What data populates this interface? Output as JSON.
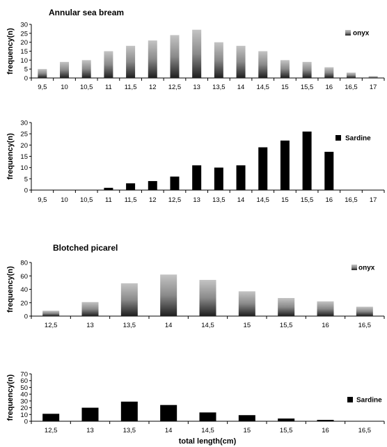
{
  "chart_data": [
    {
      "type": "bar",
      "title": "Annular sea bream",
      "ylabel": "frequency(n)",
      "xlabel": "",
      "ylim": [
        0,
        30
      ],
      "yticks": [
        0,
        5,
        10,
        15,
        20,
        25,
        30
      ],
      "categories": [
        "9,5",
        "10",
        "10,5",
        "11",
        "11,5",
        "12",
        "12,5",
        "13",
        "13,5",
        "14",
        "14,5",
        "15",
        "15,5",
        "16",
        "16,5",
        "17"
      ],
      "series": [
        {
          "name": "onyx",
          "values": [
            5,
            9,
            10,
            15,
            18,
            21,
            24,
            27,
            20,
            18,
            15,
            10,
            9,
            6,
            3,
            1
          ]
        }
      ],
      "style": "gradient",
      "legend": "right"
    },
    {
      "type": "bar",
      "title": "",
      "ylabel": "frequency(n)",
      "xlabel": "",
      "ylim": [
        0,
        30
      ],
      "yticks": [
        0,
        5,
        10,
        15,
        20,
        25,
        30
      ],
      "categories": [
        "9,5",
        "10",
        "10,5",
        "11",
        "11,5",
        "12",
        "12,5",
        "13",
        "13,5",
        "14",
        "14,5",
        "15",
        "15,5",
        "16",
        "16,5",
        "17"
      ],
      "series": [
        {
          "name": "Sardine",
          "values": [
            0,
            0,
            0,
            1,
            3,
            4,
            6,
            11,
            10,
            11,
            19,
            22,
            26,
            17,
            0,
            0
          ]
        }
      ],
      "style": "solid",
      "legend": "right"
    },
    {
      "type": "bar",
      "title": "Blotched picarel",
      "ylabel": "frequency(n)",
      "xlabel": "",
      "ylim": [
        0,
        80
      ],
      "yticks": [
        0,
        20,
        40,
        60,
        80
      ],
      "categories": [
        "12,5",
        "13",
        "13,5",
        "14",
        "14,5",
        "15",
        "15,5",
        "16",
        "16,5"
      ],
      "series": [
        {
          "name": "onyx",
          "values": [
            8,
            21,
            49,
            62,
            54,
            37,
            27,
            22,
            14
          ]
        }
      ],
      "style": "gradient",
      "legend": "top-right"
    },
    {
      "type": "bar",
      "title": "",
      "ylabel": "frequency(n)",
      "xlabel": "total length(cm)",
      "ylim": [
        0,
        70
      ],
      "yticks": [
        0,
        10,
        20,
        30,
        40,
        50,
        60,
        70
      ],
      "categories": [
        "12,5",
        "13",
        "13,5",
        "14",
        "14,5",
        "15",
        "15,5",
        "16",
        "16,5"
      ],
      "series": [
        {
          "name": "Sardine",
          "values": [
            11,
            20,
            29,
            24,
            13,
            9,
            4,
            2,
            0
          ]
        }
      ],
      "style": "solid",
      "legend": "right"
    }
  ]
}
